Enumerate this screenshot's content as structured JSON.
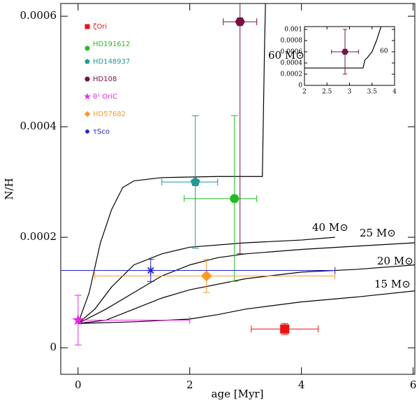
{
  "chart_data": [
    {
      "type": "scatter",
      "xlabel": "age [Myr]",
      "ylabel": "N/H",
      "xlim": [
        -0.31,
        6.03
      ],
      "ylim": [
        -4.8e-05,
        0.000623
      ],
      "xticks": [
        0,
        2,
        4,
        6
      ],
      "yticks": [
        0,
        0.0002,
        0.0004,
        0.0006
      ],
      "series": [
        {
          "name": "ζOri",
          "color": "#ee1111",
          "marker": "square",
          "x": 3.7,
          "y": 3.4e-05,
          "xerr": [
            0.6,
            0.6
          ],
          "yerr": [
            1e-05,
            1e-05
          ]
        },
        {
          "name": "HD191612",
          "color": "#22bb22",
          "marker": "circle",
          "x": 2.8,
          "y": 0.00027,
          "xerr": [
            0.9,
            0.4
          ],
          "yerr": [
            0.00015,
            0.00015
          ]
        },
        {
          "name": "HD148937",
          "color": "#229999",
          "marker": "pentagon",
          "x": 2.1,
          "y": 0.0003,
          "xerr": [
            0.6,
            0.4
          ],
          "yerr": [
            0.00012,
            0.00012
          ]
        },
        {
          "name": "HD108",
          "color": "#771144",
          "marker": "hexagon",
          "x": 2.9,
          "y": 0.00059,
          "xerr": [
            0.3,
            0.3
          ],
          "yerr": [
            0.00042,
            0.00042
          ]
        },
        {
          "name": "θ¹ OriC",
          "color": "#ee22ee",
          "marker": "star",
          "x": 0,
          "y": 5e-05,
          "xerr": [
            0,
            2
          ],
          "yerr": [
            4.5e-05,
            4.5e-05
          ]
        },
        {
          "name": "HD57682",
          "color": "#ff9922",
          "marker": "diamond",
          "x": 2.3,
          "y": 0.00013,
          "xerr": [
            2.0,
            2.3
          ],
          "yerr": [
            3e-05,
            3e-05
          ]
        },
        {
          "name": "τSco",
          "color": "#2222cc",
          "marker": "asterisk",
          "x": 1.3,
          "y": 0.00014,
          "xerr": [
            1.8,
            3.3
          ],
          "yerr": [
            2e-05,
            2e-05
          ]
        }
      ],
      "lines": [
        {
          "name": "60 M⊙",
          "color": "#000000",
          "x": [
            0,
            0.2,
            0.4,
            0.6,
            0.8,
            1.0,
            1.5,
            2.5,
            3.3,
            3.32,
            3.34,
            3.36
          ],
          "y": [
            4.4e-05,
            0.0001,
            0.00019,
            0.00025,
            0.00029,
            0.000302,
            0.000308,
            0.00031,
            0.00031,
            0.00043,
            0.00055,
            0.00064
          ]
        },
        {
          "name": "40 M⊙",
          "color": "#000000",
          "x": [
            0,
            0.3,
            0.6,
            1,
            1.5,
            2,
            3,
            4,
            4.6
          ],
          "y": [
            4.4e-05,
            7e-05,
            0.00011,
            0.00015,
            0.00017,
            0.000182,
            0.00019,
            0.000195,
            0.0002
          ]
        },
        {
          "name": "25 M⊙",
          "color": "#000000",
          "x": [
            0,
            0.5,
            1,
            1.5,
            2,
            2.5,
            3,
            4,
            5,
            6.03
          ],
          "y": [
            4.4e-05,
            7e-05,
            0.0001,
            0.00013,
            0.00015,
            0.000163,
            0.00017,
            0.000178,
            0.000184,
            0.00019
          ]
        },
        {
          "name": "20 M⊙",
          "color": "#000000",
          "x": [
            0,
            0.5,
            1,
            1.5,
            2,
            3,
            4,
            5,
            6.03
          ],
          "y": [
            4.4e-05,
            5e-05,
            7e-05,
            9e-05,
            0.000105,
            0.000125,
            0.000137,
            0.000142,
            0.00015
          ]
        },
        {
          "name": "15 M⊙",
          "color": "#000000",
          "x": [
            0,
            1,
            2,
            2.5,
            3,
            4,
            5,
            6.03
          ],
          "y": [
            4.4e-05,
            4.7e-05,
            5.2e-05,
            6e-05,
            7e-05,
            8.3e-05,
            9.2e-05,
            0.000103
          ]
        }
      ]
    },
    {
      "type": "scatter",
      "xlim": [
        2,
        4
      ],
      "ylim": [
        0,
        0.00105
      ],
      "xticks": [
        2,
        2.5,
        3,
        3.5,
        4
      ],
      "yticks": [
        0,
        0.0002,
        0.0004,
        0.0006,
        0.0008,
        0.001
      ],
      "series": [
        {
          "color": "#771144",
          "marker": "hexagon",
          "x": 2.9,
          "y": 0.0006,
          "xerr": [
            0.3,
            0.3
          ],
          "yerr": [
            0.0004,
            0.0004
          ]
        }
      ],
      "lines": [
        {
          "name": "60",
          "color": "#000000",
          "x": [
            2,
            3.3,
            3.34,
            3.4,
            3.5,
            3.6,
            3.7
          ],
          "y": [
            0.00031,
            0.00031,
            0.00045,
            0.0005,
            0.0006,
            0.0008,
            0.00105
          ]
        }
      ]
    }
  ]
}
